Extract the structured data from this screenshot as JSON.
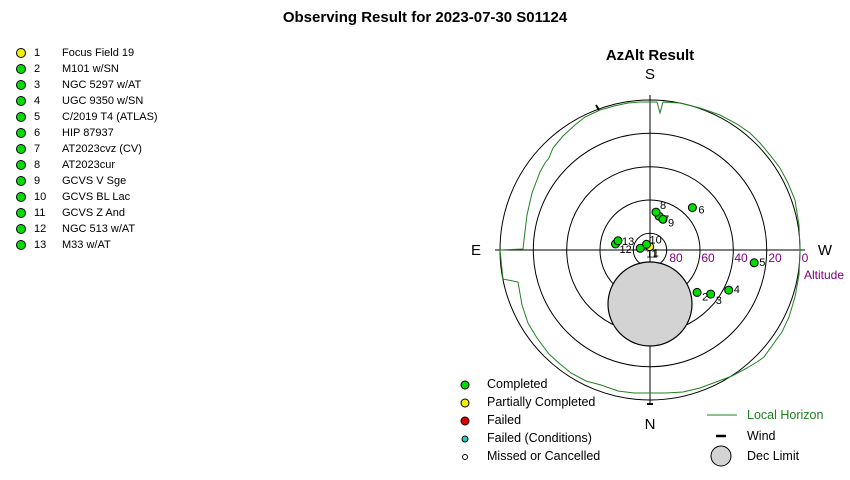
{
  "page_title": "Observing Result for 2023-07-30 S01124",
  "targets": [
    {
      "num": "1",
      "name": "Focus Field 19",
      "status": "partial",
      "alt": 88,
      "az": 355
    },
    {
      "num": "2",
      "name": "M101 w/SN",
      "status": "completed",
      "alt": 52,
      "az": 132
    },
    {
      "num": "3",
      "name": "NGC 5297 w/AT",
      "status": "completed",
      "alt": 45,
      "az": 126
    },
    {
      "num": "4",
      "name": "UGC 9350 w/SN",
      "status": "completed",
      "alt": 37,
      "az": 117
    },
    {
      "num": "5",
      "name": "C/2019 T4 (ATLAS)",
      "status": "completed",
      "alt": 27,
      "az": 97
    },
    {
      "num": "6",
      "name": "HIP 87937",
      "status": "completed",
      "alt": 54,
      "az": 45
    },
    {
      "num": "7",
      "name": "AT2023cvz (CV)",
      "status": "completed",
      "alt": 69,
      "az": 15
    },
    {
      "num": "8",
      "name": "AT2023cur",
      "status": "completed",
      "alt": 67,
      "az": 9
    },
    {
      "num": "9",
      "name": "GCVS V Sge",
      "status": "completed",
      "alt": 70,
      "az": 23
    },
    {
      "num": "10",
      "name": "GCVS BL Lac",
      "status": "completed",
      "alt": 86,
      "az": 328
    },
    {
      "num": "11",
      "name": "GCVS Z And",
      "status": "completed",
      "alt": 84,
      "az": 280
    },
    {
      "num": "12",
      "name": "NGC 513 w/AT",
      "status": "completed",
      "alt": 69,
      "az": 280
    },
    {
      "num": "13",
      "name": "M33 w/AT",
      "status": "completed",
      "alt": 70,
      "az": 286
    }
  ],
  "chart": {
    "title": "AzAlt Result",
    "directions": {
      "s": "S",
      "n": "N",
      "e": "E",
      "w": "W"
    },
    "altitude_label": "Altitude",
    "altitude_ticks": [
      "80",
      "60",
      "40",
      "20",
      "0"
    ],
    "altitude_tick_values": [
      80,
      60,
      40,
      20,
      0
    ],
    "dec_limit": {
      "center_alt": 60,
      "center_az": 180,
      "radius_deg": 24
    }
  },
  "legend": {
    "completed": "Completed",
    "partial": "Partially Completed",
    "failed": "Failed",
    "failed_conditions": "Failed (Conditions)",
    "missed": "Missed or Cancelled",
    "horizon": "Local Horizon",
    "wind": "Wind",
    "dec_limit": "Dec Limit"
  },
  "colors": {
    "completed": "#00dd00",
    "partial": "#f2f200",
    "failed": "#e00000",
    "failed_conditions": "#22cccc",
    "missed": "#ffffff",
    "horizon": "#208020",
    "altitude": "#800080",
    "dec_limit_fill": "#d3d3d3"
  }
}
